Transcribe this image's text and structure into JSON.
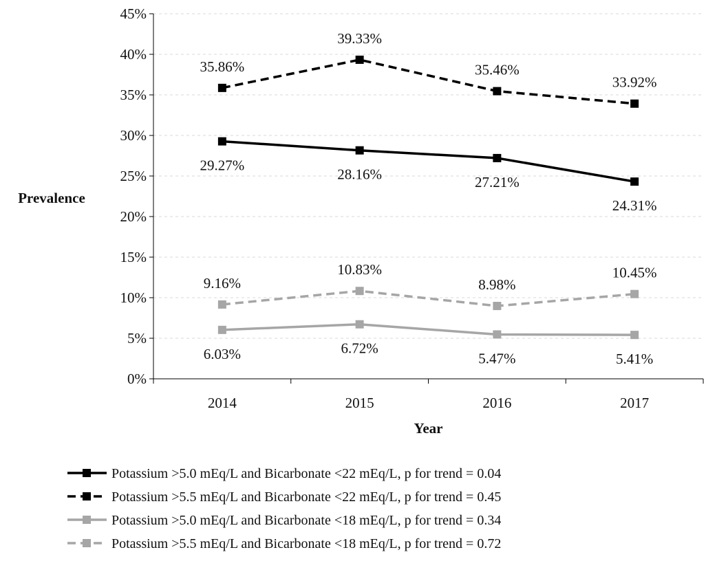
{
  "chart_data": {
    "type": "line",
    "title": "",
    "xlabel": "Year",
    "ylabel": "Prevalence",
    "categories": [
      "2014",
      "2015",
      "2016",
      "2017"
    ],
    "ylim": [
      0,
      45
    ],
    "yticks": [
      0,
      5,
      10,
      15,
      20,
      25,
      30,
      35,
      40,
      45
    ],
    "ytick_labels": [
      "0%",
      "5%",
      "10%",
      "15%",
      "20%",
      "25%",
      "30%",
      "35%",
      "40%",
      "45%"
    ],
    "grid": "horizontal dashed",
    "legend_position": "bottom",
    "series": [
      {
        "name": "Potassium >5.0 mEq/L and Bicarbonate <22 mEq/L, p for trend = 0.04",
        "values": [
          29.27,
          28.16,
          27.21,
          24.31
        ],
        "labels": [
          "29.27%",
          "28.16%",
          "27.21%",
          "24.31%"
        ],
        "color": "#000000",
        "dash": "solid",
        "label_side": "below"
      },
      {
        "name": "Potassium >5.5 mEq/L and Bicarbonate <22 mEq/L, p for trend = 0.45",
        "values": [
          35.86,
          39.33,
          35.46,
          33.92
        ],
        "labels": [
          "35.86%",
          "39.33%",
          "35.46%",
          "33.92%"
        ],
        "color": "#000000",
        "dash": "dashed",
        "label_side": "above"
      },
      {
        "name": "Potassium >5.0 mEq/L and Bicarbonate <18 mEq/L, p for trend = 0.34",
        "values": [
          6.03,
          6.72,
          5.47,
          5.41
        ],
        "labels": [
          "6.03%",
          "6.72%",
          "5.47%",
          "5.41%"
        ],
        "color": "#a6a6a6",
        "dash": "solid",
        "label_side": "below"
      },
      {
        "name": "Potassium >5.5 mEq/L and Bicarbonate <18 mEq/L, p for trend = 0.72",
        "values": [
          9.16,
          10.83,
          8.98,
          10.45
        ],
        "labels": [
          "9.16%",
          "10.83%",
          "8.98%",
          "10.45%"
        ],
        "color": "#a6a6a6",
        "dash": "dashed",
        "label_side": "above"
      }
    ]
  }
}
